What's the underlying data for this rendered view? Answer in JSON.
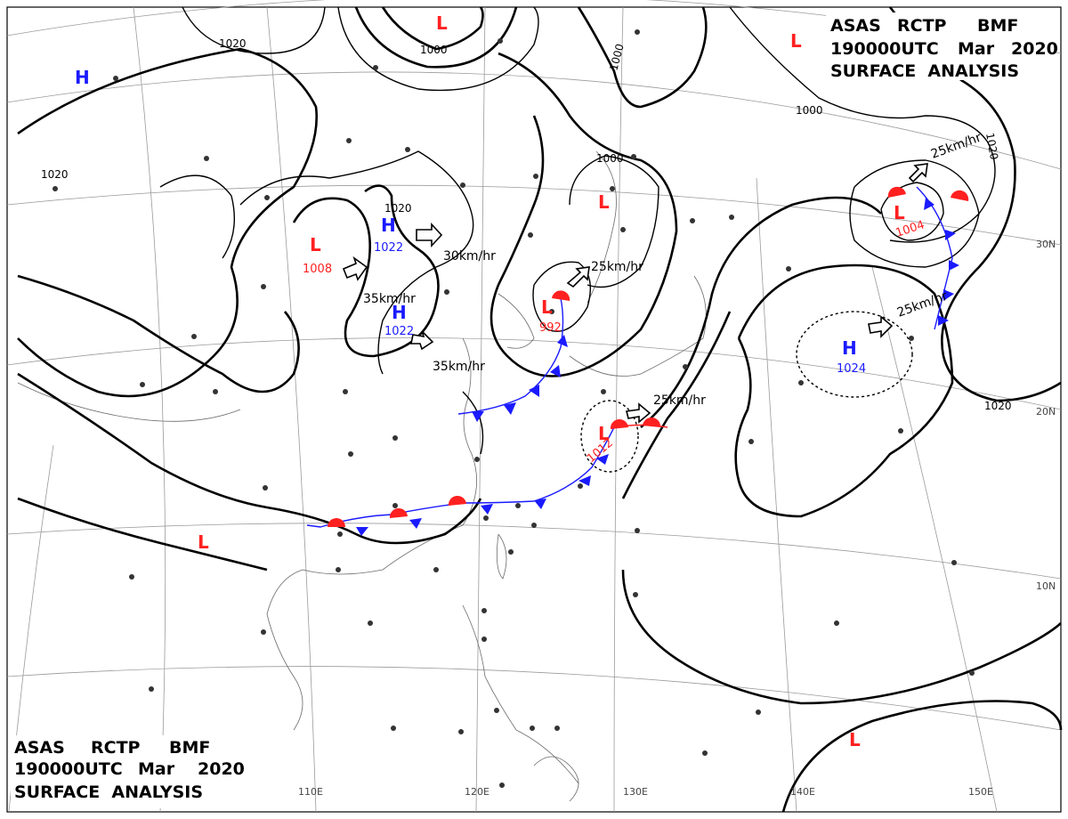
{
  "header_top": {
    "line1": [
      "ASAS",
      "RCTP",
      "BMF"
    ],
    "line2": [
      "190000UTC",
      "Mar",
      "2020"
    ],
    "line3": "SURFACE  ANALYSIS"
  },
  "header_bottom": {
    "line1": [
      "ASAS",
      "RCTP",
      "BMF"
    ],
    "line2": [
      "190000UTC",
      "Mar",
      "2020"
    ],
    "line3": "SURFACE  ANALYSIS"
  },
  "longitude_labels": [
    "110E",
    "120E",
    "130E",
    "140E",
    "150E"
  ],
  "latitude_labels": [
    "30N",
    "20N",
    "10N"
  ],
  "isobar_labels": [
    "1020",
    "1020",
    "1000",
    "1000",
    "1000",
    "1020",
    "1020",
    "1000",
    "1020",
    "1020"
  ],
  "pressure_systems": [
    {
      "type": "H",
      "pressure": ""
    },
    {
      "type": "L",
      "pressure": "1008"
    },
    {
      "type": "H",
      "pressure": "1022"
    },
    {
      "type": "H",
      "pressure": "1022"
    },
    {
      "type": "L",
      "pressure": ""
    },
    {
      "type": "L",
      "pressure": "992"
    },
    {
      "type": "L",
      "pressure": ""
    },
    {
      "type": "L",
      "pressure": "1004"
    },
    {
      "type": "H",
      "pressure": "1024"
    },
    {
      "type": "L",
      "pressure": "1012"
    },
    {
      "type": "L",
      "pressure": ""
    },
    {
      "type": "L",
      "pressure": ""
    }
  ],
  "motion_labels": [
    "30km/hr",
    "35km/hr",
    "35km/hr",
    "25km/hr",
    "25km/hr",
    "25km/hr",
    "25km/hr"
  ],
  "colors": {
    "high": "#1a1aff",
    "low": "#ff2020",
    "cold_front": "#1a1aff",
    "warm_front": "#ff2020",
    "grid": "#999999",
    "coast": "#666666"
  }
}
